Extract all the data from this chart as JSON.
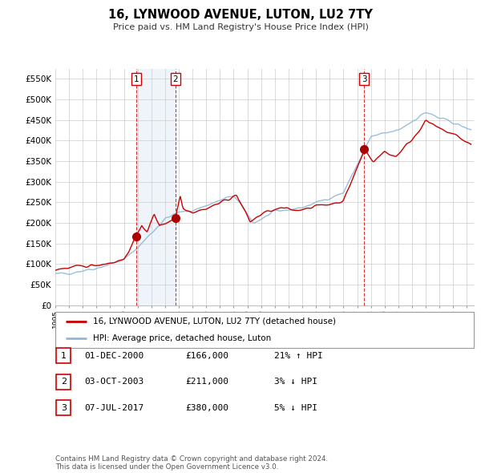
{
  "title": "16, LYNWOOD AVENUE, LUTON, LU2 7TY",
  "subtitle": "Price paid vs. HM Land Registry's House Price Index (HPI)",
  "ylim": [
    0,
    575000
  ],
  "yticks": [
    0,
    50000,
    100000,
    150000,
    200000,
    250000,
    300000,
    350000,
    400000,
    450000,
    500000,
    550000
  ],
  "ytick_labels": [
    "£0",
    "£50K",
    "£100K",
    "£150K",
    "£200K",
    "£250K",
    "£300K",
    "£350K",
    "£400K",
    "£450K",
    "£500K",
    "£550K"
  ],
  "sale_dates_num": [
    2000.92,
    2003.75,
    2017.51
  ],
  "sale_prices": [
    166000,
    211000,
    380000
  ],
  "sale_labels": [
    "1",
    "2",
    "3"
  ],
  "shade_color": "#cfe0f0",
  "red_line_color": "#cc0000",
  "blue_line_color": "#90b8d8",
  "dot_color": "#aa0000",
  "legend_label_red": "16, LYNWOOD AVENUE, LUTON, LU2 7TY (detached house)",
  "legend_label_blue": "HPI: Average price, detached house, Luton",
  "table_rows": [
    [
      "1",
      "01-DEC-2000",
      "£166,000",
      "21% ↑ HPI"
    ],
    [
      "2",
      "03-OCT-2003",
      "£211,000",
      "3% ↓ HPI"
    ],
    [
      "3",
      "07-JUL-2017",
      "£380,000",
      "5% ↓ HPI"
    ]
  ],
  "footer_text": "Contains HM Land Registry data © Crown copyright and database right 2024.\nThis data is licensed under the Open Government Licence v3.0.",
  "background_color": "#ffffff",
  "grid_color": "#cccccc"
}
